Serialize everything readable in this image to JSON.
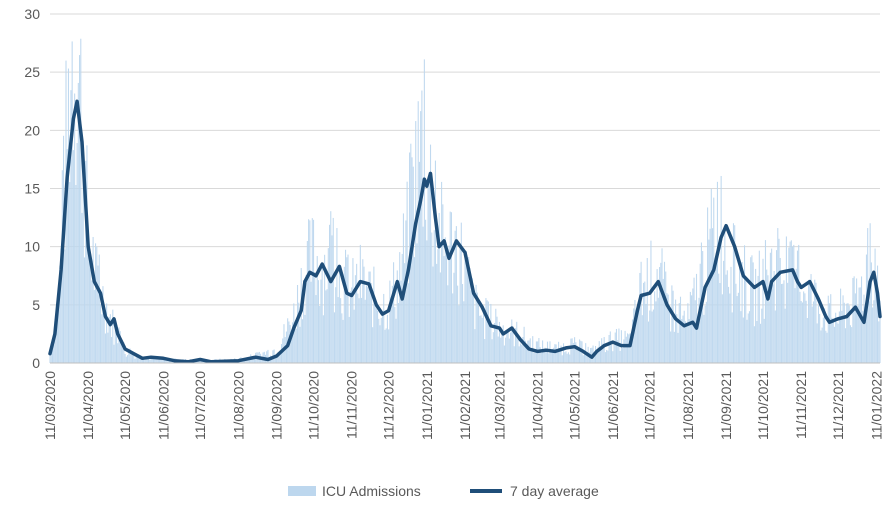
{
  "chart_data": {
    "type": "bar",
    "title": "",
    "xlabel": "",
    "ylabel": "",
    "ylim": [
      0,
      30
    ],
    "y_ticks": [
      0,
      5,
      10,
      15,
      20,
      25,
      30
    ],
    "x_ticks": [
      "11/03/2020",
      "11/04/2020",
      "11/05/2020",
      "11/06/2020",
      "11/07/2020",
      "11/08/2020",
      "11/09/2020",
      "11/10/2020",
      "11/11/2020",
      "11/12/2020",
      "11/01/2021",
      "11/02/2021",
      "11/03/2021",
      "11/04/2021",
      "11/05/2021",
      "11/06/2021",
      "11/07/2021",
      "11/08/2021",
      "11/09/2021",
      "11/10/2021",
      "11/11/2021",
      "11/12/2021",
      "11/01/2022"
    ],
    "grid": "horizontal",
    "legend_position": "bottom",
    "series": [
      {
        "name": "ICU Admissions",
        "type": "bar",
        "color": "#bdd7ee",
        "points": [
          [
            "2020-03-11",
            1
          ],
          [
            "2020-03-18",
            5
          ],
          [
            "2020-03-25",
            20
          ],
          [
            "2020-03-30",
            28
          ],
          [
            "2020-04-04",
            24
          ],
          [
            "2020-04-11",
            11
          ],
          [
            "2020-04-18",
            7
          ],
          [
            "2020-04-25",
            5
          ],
          [
            "2020-05-02",
            3
          ],
          [
            "2020-05-11",
            1
          ],
          [
            "2020-05-25",
            0.5
          ],
          [
            "2020-06-11",
            0.3
          ],
          [
            "2020-07-11",
            0.2
          ],
          [
            "2020-08-11",
            0.3
          ],
          [
            "2020-08-25",
            0.6
          ],
          [
            "2020-09-11",
            1.2
          ],
          [
            "2020-09-25",
            4
          ],
          [
            "2020-10-04",
            8
          ],
          [
            "2020-10-11",
            9
          ],
          [
            "2020-10-18",
            8
          ],
          [
            "2020-10-25",
            9
          ],
          [
            "2020-11-04",
            7
          ],
          [
            "2020-11-11",
            6
          ],
          [
            "2020-11-18",
            7
          ],
          [
            "2020-11-25",
            6
          ],
          [
            "2020-12-04",
            5
          ],
          [
            "2020-12-11",
            5
          ],
          [
            "2020-12-18",
            7
          ],
          [
            "2020-12-25",
            10
          ],
          [
            "2021-01-02",
            16
          ],
          [
            "2021-01-07",
            19
          ],
          [
            "2021-01-11",
            17
          ],
          [
            "2021-01-18",
            12
          ],
          [
            "2021-01-25",
            10
          ],
          [
            "2021-02-04",
            10
          ],
          [
            "2021-02-11",
            8
          ],
          [
            "2021-02-18",
            5
          ],
          [
            "2021-02-25",
            4
          ],
          [
            "2021-03-11",
            3
          ],
          [
            "2021-03-25",
            2.5
          ],
          [
            "2021-04-11",
            1.5
          ],
          [
            "2021-04-25",
            1.2
          ],
          [
            "2021-05-11",
            1.5
          ],
          [
            "2021-05-25",
            1
          ],
          [
            "2021-06-11",
            2
          ],
          [
            "2021-06-25",
            2
          ],
          [
            "2021-07-04",
            6
          ],
          [
            "2021-07-11",
            7
          ],
          [
            "2021-07-18",
            8
          ],
          [
            "2021-07-25",
            5
          ],
          [
            "2021-08-04",
            4
          ],
          [
            "2021-08-11",
            3.5
          ],
          [
            "2021-08-18",
            6
          ],
          [
            "2021-08-25",
            8
          ],
          [
            "2021-09-04",
            13
          ],
          [
            "2021-09-11",
            10
          ],
          [
            "2021-09-18",
            8
          ],
          [
            "2021-09-25",
            7
          ],
          [
            "2021-10-04",
            6
          ],
          [
            "2021-10-11",
            7
          ],
          [
            "2021-10-18",
            8
          ],
          [
            "2021-10-25",
            8
          ],
          [
            "2021-11-04",
            7
          ],
          [
            "2021-11-11",
            7
          ],
          [
            "2021-11-18",
            6
          ],
          [
            "2021-11-25",
            5
          ],
          [
            "2021-12-04",
            4
          ],
          [
            "2021-12-11",
            4
          ],
          [
            "2021-12-18",
            5
          ],
          [
            "2021-12-25",
            5
          ],
          [
            "2022-01-04",
            8
          ],
          [
            "2022-01-11",
            9
          ],
          [
            "2022-01-14",
            4
          ]
        ]
      },
      {
        "name": "7 day average",
        "type": "line",
        "color": "#1f4e79",
        "points": [
          [
            "2020-03-11",
            0.8
          ],
          [
            "2020-03-15",
            2.5
          ],
          [
            "2020-03-20",
            8
          ],
          [
            "2020-03-25",
            16
          ],
          [
            "2020-03-30",
            21
          ],
          [
            "2020-04-02",
            22.5
          ],
          [
            "2020-04-06",
            19
          ],
          [
            "2020-04-11",
            10
          ],
          [
            "2020-04-16",
            7
          ],
          [
            "2020-04-21",
            6
          ],
          [
            "2020-04-25",
            4
          ],
          [
            "2020-04-29",
            3.3
          ],
          [
            "2020-05-02",
            3.8
          ],
          [
            "2020-05-05",
            2.5
          ],
          [
            "2020-05-11",
            1.2
          ],
          [
            "2020-05-18",
            0.8
          ],
          [
            "2020-05-25",
            0.4
          ],
          [
            "2020-06-01",
            0.5
          ],
          [
            "2020-06-11",
            0.4
          ],
          [
            "2020-06-20",
            0.2
          ],
          [
            "2020-07-01",
            0.1
          ],
          [
            "2020-07-11",
            0.3
          ],
          [
            "2020-07-20",
            0.1
          ],
          [
            "2020-08-11",
            0.2
          ],
          [
            "2020-08-25",
            0.5
          ],
          [
            "2020-09-04",
            0.3
          ],
          [
            "2020-09-11",
            0.6
          ],
          [
            "2020-09-20",
            1.5
          ],
          [
            "2020-09-25",
            3
          ],
          [
            "2020-10-01",
            4.5
          ],
          [
            "2020-10-04",
            7
          ],
          [
            "2020-10-08",
            7.8
          ],
          [
            "2020-10-13",
            7.5
          ],
          [
            "2020-10-18",
            8.5
          ],
          [
            "2020-10-25",
            7
          ],
          [
            "2020-11-01",
            8.3
          ],
          [
            "2020-11-07",
            6
          ],
          [
            "2020-11-11",
            5.8
          ],
          [
            "2020-11-18",
            7
          ],
          [
            "2020-11-25",
            6.8
          ],
          [
            "2020-12-01",
            5
          ],
          [
            "2020-12-06",
            4.2
          ],
          [
            "2020-12-11",
            4.5
          ],
          [
            "2020-12-18",
            7
          ],
          [
            "2020-12-22",
            5.5
          ],
          [
            "2020-12-27",
            8
          ],
          [
            "2021-01-02",
            12
          ],
          [
            "2021-01-06",
            14
          ],
          [
            "2021-01-09",
            15.8
          ],
          [
            "2021-01-11",
            15.2
          ],
          [
            "2021-01-14",
            16.3
          ],
          [
            "2021-01-18",
            12.5
          ],
          [
            "2021-01-21",
            10
          ],
          [
            "2021-01-25",
            10.5
          ],
          [
            "2021-01-29",
            9
          ],
          [
            "2021-02-04",
            10.5
          ],
          [
            "2021-02-11",
            9.5
          ],
          [
            "2021-02-18",
            6
          ],
          [
            "2021-02-25",
            4.8
          ],
          [
            "2021-03-04",
            3.2
          ],
          [
            "2021-03-11",
            3
          ],
          [
            "2021-03-14",
            2.5
          ],
          [
            "2021-03-21",
            3
          ],
          [
            "2021-03-28",
            2
          ],
          [
            "2021-04-04",
            1.2
          ],
          [
            "2021-04-11",
            1
          ],
          [
            "2021-04-18",
            1.1
          ],
          [
            "2021-04-25",
            1
          ],
          [
            "2021-05-04",
            1.3
          ],
          [
            "2021-05-11",
            1.4
          ],
          [
            "2021-05-18",
            1
          ],
          [
            "2021-05-25",
            0.5
          ],
          [
            "2021-05-29",
            1
          ],
          [
            "2021-06-04",
            1.5
          ],
          [
            "2021-06-11",
            1.8
          ],
          [
            "2021-06-18",
            1.5
          ],
          [
            "2021-06-25",
            1.5
          ],
          [
            "2021-07-01",
            4.5
          ],
          [
            "2021-07-04",
            5.8
          ],
          [
            "2021-07-11",
            6
          ],
          [
            "2021-07-18",
            7
          ],
          [
            "2021-07-25",
            5
          ],
          [
            "2021-08-01",
            3.8
          ],
          [
            "2021-08-08",
            3.2
          ],
          [
            "2021-08-15",
            3.5
          ],
          [
            "2021-08-18",
            3
          ],
          [
            "2021-08-25",
            6.5
          ],
          [
            "2021-09-01",
            8
          ],
          [
            "2021-09-07",
            10.8
          ],
          [
            "2021-09-11",
            11.8
          ],
          [
            "2021-09-18",
            10
          ],
          [
            "2021-09-25",
            7.5
          ],
          [
            "2021-10-04",
            6.5
          ],
          [
            "2021-10-11",
            7
          ],
          [
            "2021-10-15",
            5.5
          ],
          [
            "2021-10-18",
            7
          ],
          [
            "2021-10-25",
            7.8
          ],
          [
            "2021-11-04",
            8
          ],
          [
            "2021-11-08",
            7
          ],
          [
            "2021-11-11",
            6.5
          ],
          [
            "2021-11-18",
            7
          ],
          [
            "2021-11-25",
            5.5
          ],
          [
            "2021-12-01",
            4
          ],
          [
            "2021-12-04",
            3.5
          ],
          [
            "2021-12-11",
            3.8
          ],
          [
            "2021-12-18",
            4
          ],
          [
            "2021-12-25",
            4.8
          ],
          [
            "2022-01-01",
            3.5
          ],
          [
            "2022-01-06",
            7
          ],
          [
            "2022-01-09",
            7.8
          ],
          [
            "2022-01-12",
            6
          ],
          [
            "2022-01-14",
            4
          ]
        ]
      }
    ]
  }
}
